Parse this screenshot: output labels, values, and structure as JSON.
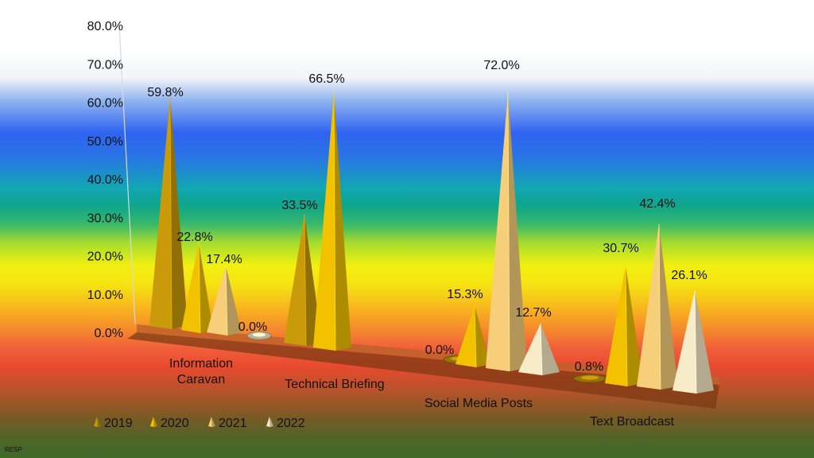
{
  "footer_note": "RESP",
  "chart_data": {
    "type": "bar",
    "style": "3d-cone",
    "categories": [
      "Information Caravan",
      "Technical Briefing",
      "Social Media Posts",
      "Text Broadcast"
    ],
    "category_lines": [
      [
        "Information",
        "Caravan"
      ],
      [
        "Technical Briefing"
      ],
      [
        "Social Media Posts"
      ],
      [
        "Text Broadcast"
      ]
    ],
    "series": [
      {
        "name": "2019",
        "values": [
          59.8,
          33.5,
          0.0,
          0.8
        ],
        "labels": [
          "59.8%",
          "33.5%",
          "0.0%",
          "0.8%"
        ],
        "color": "#c99a0a"
      },
      {
        "name": "2020",
        "values": [
          22.8,
          66.5,
          15.3,
          30.7
        ],
        "labels": [
          "22.8%",
          "66.5%",
          "15.3%",
          "30.7%"
        ],
        "color": "#f2c200"
      },
      {
        "name": "2021",
        "values": [
          17.4,
          null,
          72.0,
          42.4
        ],
        "labels": [
          "17.4%",
          "",
          "72.0%",
          "42.4%"
        ],
        "color": "#f7cf7a"
      },
      {
        "name": "2022",
        "values": [
          0.0,
          null,
          12.7,
          26.1
        ],
        "labels": [
          "0.0%",
          "",
          "12.7%",
          "26.1%"
        ],
        "color": "#f8ecc8"
      }
    ],
    "ylim": [
      0,
      80
    ],
    "yticks": [
      "0.0%",
      "10.0%",
      "20.0%",
      "30.0%",
      "40.0%",
      "50.0%",
      "60.0%",
      "70.0%",
      "80.0%"
    ],
    "legend": "bottom-left",
    "grid": false
  }
}
